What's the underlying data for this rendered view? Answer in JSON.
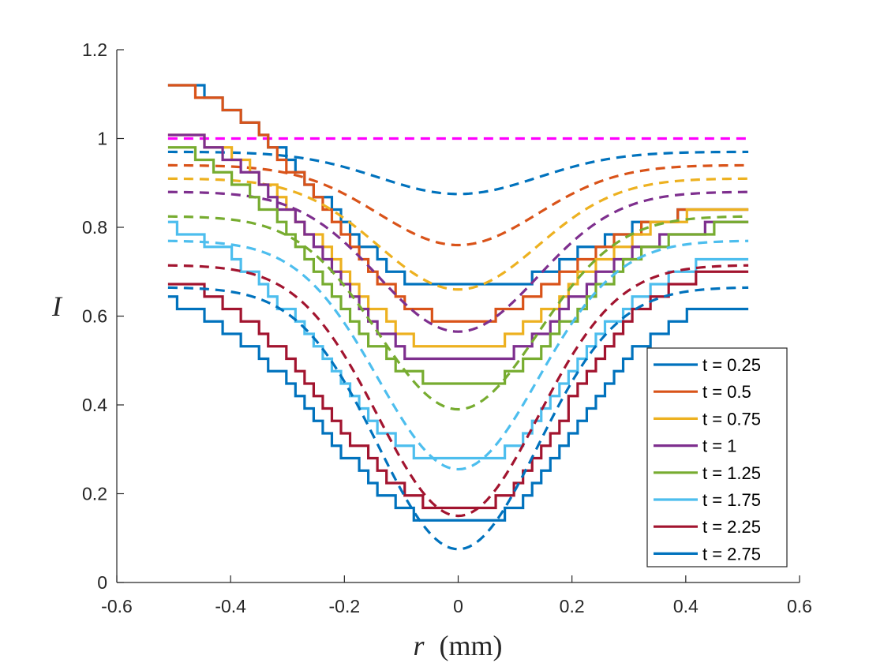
{
  "chart_data": {
    "type": "line",
    "title": "",
    "xlabel": "r (mm)",
    "ylabel": "I",
    "xlabel_var": "r",
    "xlabel_unit": "(mm)",
    "xlim": [
      -0.6,
      0.6
    ],
    "ylim": [
      0,
      1.2
    ],
    "xticks": [
      -0.6,
      -0.4,
      -0.2,
      0,
      0.2,
      0.4,
      0.6
    ],
    "xtick_labels": [
      "-0.6",
      "-0.4",
      "-0.2",
      "0",
      "0.2",
      "0.4",
      "0.6"
    ],
    "yticks": [
      0,
      0.2,
      0.4,
      0.6,
      0.8,
      1,
      1.2
    ],
    "ytick_labels": [
      "0",
      "0.2",
      "0.4",
      "0.6",
      "0.8",
      "1",
      "1.2"
    ],
    "grid": false,
    "legend_position": "bottom-right",
    "legend": [
      "t = 0.25",
      "t = 0.5",
      "t = 0.75",
      "t = 1",
      "t = 1.25",
      "t = 1.75",
      "t = 2.25",
      "t = 2.75"
    ],
    "reference_line": {
      "name": "baseline",
      "y": 1.0,
      "color": "#FF00FF",
      "style": "dashed"
    },
    "r_range": [
      -0.51,
      0.51
    ],
    "series": [
      {
        "name": "t = 0.25",
        "color": "#0072BD",
        "dashed_outer": 0.97,
        "dashed_min": 0.875,
        "dashed_width": 0.14,
        "solid_left": 1.16,
        "solid_min": 0.665,
        "solid_right": 0.842,
        "solid_width": 0.16,
        "solid_flat": 0.04
      },
      {
        "name": "t = 0.5",
        "color": "#D95319",
        "dashed_outer": 0.94,
        "dashed_min": 0.76,
        "dashed_width": 0.14,
        "solid_left": 1.16,
        "solid_min": 0.597,
        "solid_right": 0.842,
        "solid_width": 0.16,
        "solid_flat": 0.03
      },
      {
        "name": "t = 0.75",
        "color": "#EDB120",
        "dashed_outer": 0.91,
        "dashed_min": 0.66,
        "dashed_width": 0.14,
        "solid_left": 1.05,
        "solid_min": 0.53,
        "solid_right": 0.842,
        "solid_width": 0.16,
        "solid_flat": 0.03
      },
      {
        "name": "t = 1",
        "color": "#7E2F8E",
        "dashed_outer": 0.88,
        "dashed_min": 0.565,
        "dashed_width": 0.14,
        "solid_left": 1.05,
        "solid_min": 0.49,
        "solid_right": 0.808,
        "solid_width": 0.16,
        "solid_flat": 0.03
      },
      {
        "name": "t = 1.25",
        "color": "#77AC30",
        "dashed_outer": 0.825,
        "dashed_min": 0.39,
        "dashed_width": 0.14,
        "solid_left": 1.02,
        "solid_min": 0.455,
        "solid_right": 0.808,
        "solid_width": 0.16,
        "solid_flat": 0.04
      },
      {
        "name": "t = 1.75",
        "color": "#4DBEEE",
        "dashed_outer": 0.77,
        "dashed_min": 0.255,
        "dashed_width": 0.14,
        "solid_left": 0.84,
        "solid_min": 0.28,
        "solid_right": 0.738,
        "solid_width": 0.16,
        "solid_flat": 0.04
      },
      {
        "name": "t = 2.25",
        "color": "#A2142F",
        "dashed_outer": 0.715,
        "dashed_min": 0.15,
        "dashed_width": 0.14,
        "solid_left": 0.71,
        "solid_min": 0.175,
        "solid_right": 0.712,
        "solid_width": 0.16,
        "solid_flat": 0.03
      },
      {
        "name": "t = 2.75",
        "color": "#0072BD",
        "dashed_outer": 0.665,
        "dashed_min": 0.075,
        "dashed_width": 0.14,
        "solid_left": 0.665,
        "solid_min": 0.14,
        "solid_right": 0.632,
        "solid_width": 0.16,
        "solid_flat": 0.04
      }
    ]
  }
}
